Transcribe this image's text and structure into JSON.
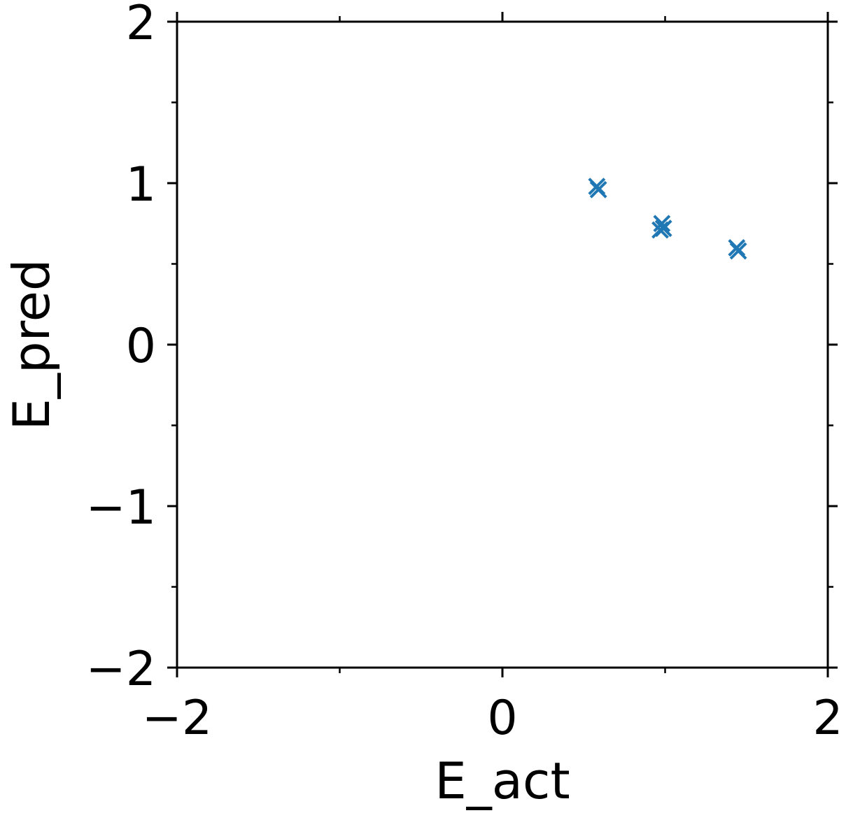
{
  "chart_data": {
    "type": "scatter",
    "title": "",
    "xlabel": "E_act",
    "ylabel": "E_pred",
    "xlim": [
      -2,
      2
    ],
    "ylim": [
      -2,
      2
    ],
    "x_ticks": [
      -2,
      0,
      2
    ],
    "x_tick_labels": [
      "−2",
      "0",
      "2"
    ],
    "y_ticks": [
      -2,
      -1,
      0,
      1,
      2
    ],
    "y_tick_labels": [
      "−2",
      "−1",
      "0",
      "1",
      "2"
    ],
    "x_minor_ticks": [
      -1,
      1
    ],
    "y_minor_ticks": [
      -1.5,
      -0.5,
      0.5,
      1.5
    ],
    "grid": false,
    "legend": "none",
    "marker": "x",
    "color": "#1f77b4",
    "series": [
      {
        "points": [
          {
            "x": 0.58,
            "y": 0.98
          },
          {
            "x": 0.59,
            "y": 0.96
          },
          {
            "x": 0.98,
            "y": 0.75
          },
          {
            "x": 0.99,
            "y": 0.72
          },
          {
            "x": 0.97,
            "y": 0.71
          },
          {
            "x": 1.44,
            "y": 0.6
          },
          {
            "x": 1.45,
            "y": 0.58
          }
        ]
      }
    ]
  }
}
